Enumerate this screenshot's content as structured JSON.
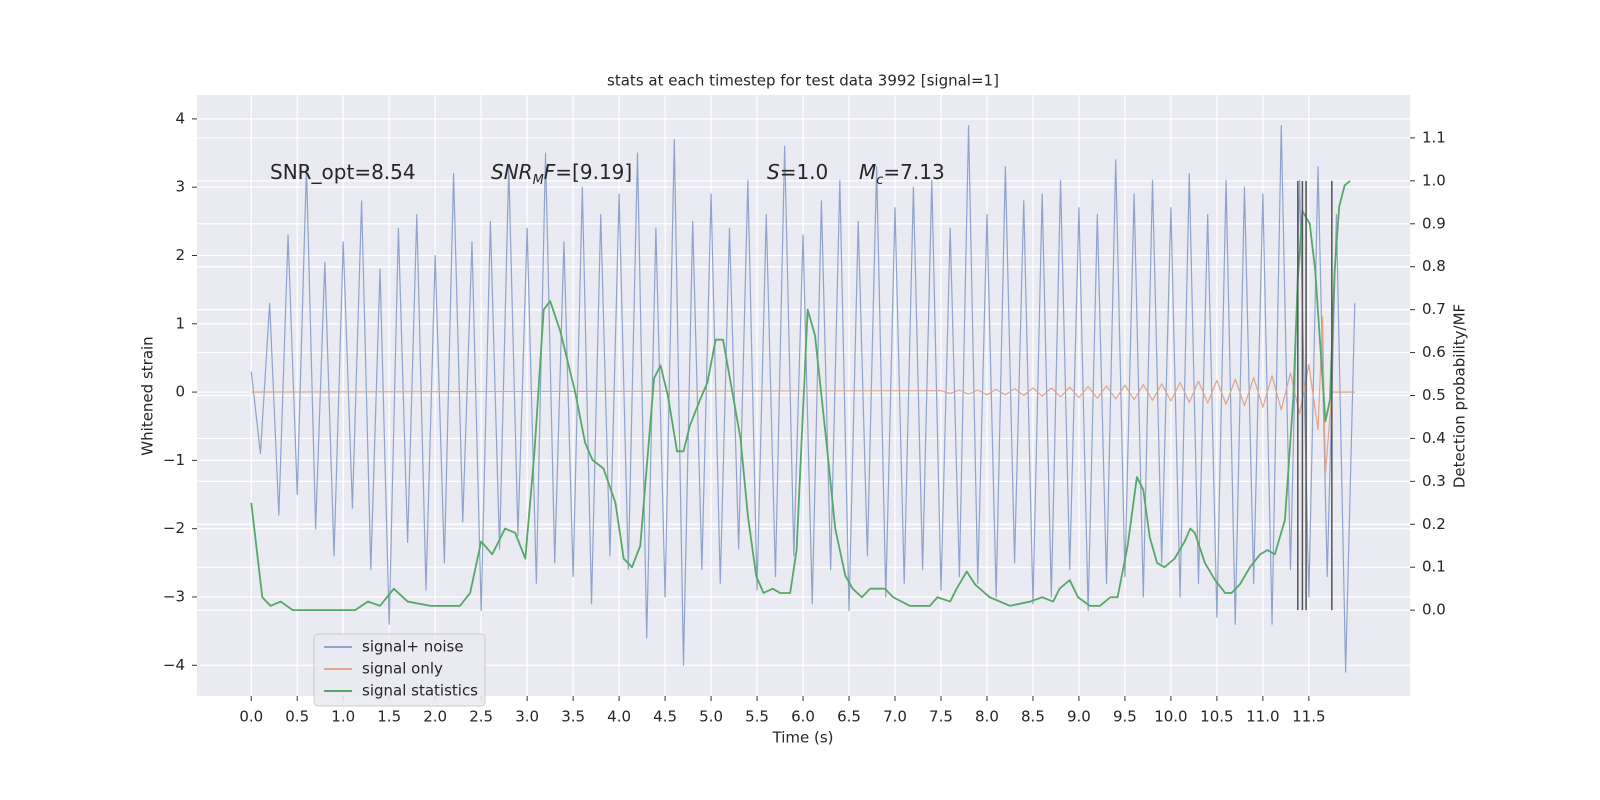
{
  "chart_data": {
    "type": "line",
    "title": "stats at each timestep for test data 3992 [signal=1]",
    "xlabel": "Time (s)",
    "ylabel": "Whitened strain",
    "y2label": "Detection probability/MF",
    "xlim": [
      -0.59,
      12.6
    ],
    "ylim": [
      -4.45,
      4.35
    ],
    "y2lim": [
      -0.2,
      1.2
    ],
    "xticks": [
      {
        "value": 0,
        "label": "0.0"
      },
      {
        "value": 0.5,
        "label": "0.5"
      },
      {
        "value": 1,
        "label": "1.0"
      },
      {
        "value": 1.5,
        "label": "1.5"
      },
      {
        "value": 2,
        "label": "2.0"
      },
      {
        "value": 2.5,
        "label": "2.5"
      },
      {
        "value": 3,
        "label": "3.0"
      },
      {
        "value": 3.5,
        "label": "3.5"
      },
      {
        "value": 4,
        "label": "4.0"
      },
      {
        "value": 4.5,
        "label": "4.5"
      },
      {
        "value": 5,
        "label": "5.0"
      },
      {
        "value": 5.5,
        "label": "5.5"
      },
      {
        "value": 6,
        "label": "6.0"
      },
      {
        "value": 6.5,
        "label": "6.5"
      },
      {
        "value": 7,
        "label": "7.0"
      },
      {
        "value": 7.5,
        "label": "7.5"
      },
      {
        "value": 8,
        "label": "8.0"
      },
      {
        "value": 8.5,
        "label": "8.5"
      },
      {
        "value": 9,
        "label": "9.0"
      },
      {
        "value": 9.5,
        "label": "9.5"
      },
      {
        "value": 10,
        "label": "10.0"
      },
      {
        "value": 10.5,
        "label": "10.5"
      },
      {
        "value": 11,
        "label": "11.0"
      },
      {
        "value": 11.5,
        "label": "11.5"
      }
    ],
    "yticks": [
      {
        "value": -4,
        "label": "−4"
      },
      {
        "value": -3,
        "label": "−3"
      },
      {
        "value": -2,
        "label": "−2"
      },
      {
        "value": -1,
        "label": "−1"
      },
      0,
      1,
      2,
      3,
      4
    ],
    "y2ticks": [
      {
        "value": 0,
        "label": "0.0"
      },
      {
        "value": 0.1,
        "label": "0.1"
      },
      {
        "value": 0.2,
        "label": "0.2"
      },
      {
        "value": 0.3,
        "label": "0.3"
      },
      {
        "value": 0.4,
        "label": "0.4"
      },
      {
        "value": 0.5,
        "label": "0.5"
      },
      {
        "value": 0.6,
        "label": "0.6"
      },
      {
        "value": 0.7,
        "label": "0.7"
      },
      {
        "value": 0.8,
        "label": "0.8"
      },
      {
        "value": 0.9,
        "label": "0.9"
      },
      {
        "value": 1,
        "label": "1.0"
      },
      {
        "value": 1.1,
        "label": "1.1"
      }
    ],
    "grid": true,
    "legend_loc": "lower left",
    "series": [
      {
        "name": "signal+ noise",
        "color": "#8fa3cc",
        "axis": "y",
        "x": [
          0,
          0.1,
          0.2,
          0.3,
          0.4,
          0.5,
          0.6,
          0.7,
          0.8,
          0.9,
          1,
          1.1,
          1.2,
          1.3,
          1.4,
          1.5,
          1.6,
          1.7,
          1.8,
          1.9,
          2,
          2.1,
          2.2,
          2.3,
          2.4,
          2.5,
          2.6,
          2.7,
          2.8,
          2.9,
          3,
          3.1,
          3.2,
          3.3,
          3.4,
          3.5,
          3.6,
          3.7,
          3.8,
          3.9,
          4,
          4.1,
          4.2,
          4.3,
          4.4,
          4.5,
          4.6,
          4.7,
          4.8,
          4.9,
          5,
          5.1,
          5.2,
          5.3,
          5.4,
          5.5,
          5.6,
          5.7,
          5.8,
          5.9,
          6,
          6.1,
          6.2,
          6.3,
          6.4,
          6.5,
          6.6,
          6.7,
          6.8,
          6.9,
          7,
          7.1,
          7.2,
          7.3,
          7.4,
          7.5,
          7.6,
          7.7,
          7.8,
          7.9,
          8,
          8.1,
          8.2,
          8.3,
          8.4,
          8.5,
          8.6,
          8.7,
          8.8,
          8.9,
          9,
          9.1,
          9.2,
          9.3,
          9.4,
          9.5,
          9.6,
          9.7,
          9.8,
          9.9,
          10,
          10.1,
          10.2,
          10.3,
          10.4,
          10.5,
          10.6,
          10.7,
          10.8,
          10.9,
          11,
          11.1,
          11.2,
          11.3,
          11.4,
          11.5,
          11.6,
          11.7,
          11.8,
          11.9,
          12
        ],
        "values": [
          0.3,
          -0.9,
          1.3,
          -1.8,
          2.3,
          -1.5,
          3.3,
          -2.0,
          1.9,
          -2.4,
          2.2,
          -1.7,
          2.8,
          -2.6,
          1.8,
          -3.4,
          2.4,
          -2.2,
          2.6,
          -2.9,
          2.0,
          -2.5,
          3.2,
          -1.9,
          2.2,
          -3.2,
          2.5,
          -2.3,
          3.3,
          -2.1,
          2.4,
          -2.8,
          3.5,
          -2.5,
          2.2,
          -2.7,
          3.0,
          -3.1,
          2.6,
          -2.4,
          2.9,
          -2.6,
          3.5,
          -3.6,
          2.4,
          -3.0,
          3.7,
          -4.0,
          2.5,
          -2.6,
          2.9,
          -2.8,
          2.4,
          -2.3,
          3.1,
          -2.9,
          2.6,
          -2.7,
          3.6,
          -2.4,
          2.3,
          -3.1,
          2.8,
          -2.6,
          3.1,
          -3.2,
          2.5,
          -2.4,
          3.3,
          -3.0,
          2.7,
          -2.8,
          3.0,
          -2.6,
          3.1,
          -2.9,
          2.4,
          -2.7,
          3.9,
          -2.8,
          2.6,
          -3.0,
          3.3,
          -2.5,
          2.8,
          -3.1,
          2.9,
          -3.0,
          3.1,
          -2.6,
          2.7,
          -3.2,
          2.6,
          -2.8,
          3.4,
          -2.7,
          2.9,
          -3.0,
          3.1,
          -2.5,
          2.7,
          -3.0,
          3.2,
          -2.8,
          2.6,
          -3.3,
          3.1,
          -3.4,
          3.0,
          -2.8,
          2.9,
          -3.4,
          3.9,
          -2.6,
          3.1,
          -3.0,
          3.3,
          -2.7,
          2.6,
          -4.1,
          1.3
        ]
      },
      {
        "name": "signal only",
        "color": "#e0a58a",
        "axis": "y",
        "x": [
          0,
          7.5,
          7.6,
          7.7,
          7.8,
          7.9,
          8,
          8.1,
          8.2,
          8.3,
          8.4,
          8.5,
          8.6,
          8.7,
          8.8,
          8.9,
          9,
          9.1,
          9.2,
          9.3,
          9.4,
          9.5,
          9.6,
          9.7,
          9.8,
          9.9,
          10,
          10.1,
          10.2,
          10.3,
          10.4,
          10.5,
          10.6,
          10.7,
          10.8,
          10.9,
          11,
          11.1,
          11.2,
          11.3,
          11.4,
          11.5,
          11.6,
          11.65,
          11.68,
          11.75,
          12
        ],
        "values": [
          0,
          0.02,
          -0.02,
          0.03,
          -0.03,
          0.03,
          -0.04,
          0.04,
          -0.04,
          0.05,
          -0.05,
          0.06,
          -0.06,
          0.06,
          -0.07,
          0.07,
          -0.08,
          0.08,
          -0.09,
          0.09,
          -0.1,
          0.1,
          -0.11,
          0.11,
          -0.12,
          0.12,
          -0.13,
          0.14,
          -0.15,
          0.16,
          -0.16,
          0.17,
          -0.18,
          0.19,
          -0.2,
          0.21,
          -0.22,
          0.24,
          -0.26,
          0.28,
          -0.32,
          0.4,
          -0.55,
          1.1,
          -1.2,
          0,
          0
        ]
      },
      {
        "name": "signal statistics",
        "color": "#55a868",
        "axis": "y2",
        "x": [
          0,
          0.12,
          0.21,
          0.32,
          0.45,
          0.75,
          0.97,
          1.13,
          1.27,
          1.4,
          1.55,
          1.7,
          1.95,
          2.27,
          2.38,
          2.5,
          2.62,
          2.76,
          2.87,
          2.98,
          3.08,
          3.18,
          3.25,
          3.36,
          3.52,
          3.63,
          3.71,
          3.83,
          3.96,
          4.05,
          4.14,
          4.23,
          4.38,
          4.45,
          4.53,
          4.63,
          4.7,
          4.77,
          4.88,
          4.96,
          5.05,
          5.13,
          5.18,
          5.32,
          5.4,
          5.49,
          5.57,
          5.67,
          5.75,
          5.86,
          5.93,
          6.05,
          6.13,
          6.26,
          6.35,
          6.46,
          6.54,
          6.64,
          6.73,
          6.82,
          6.89,
          6.98,
          7.16,
          7.38,
          7.46,
          7.6,
          7.67,
          7.78,
          7.87,
          8.03,
          8.25,
          8.47,
          8.6,
          8.72,
          8.79,
          8.9,
          8.99,
          9.12,
          9.23,
          9.34,
          9.42,
          9.53,
          9.63,
          9.7,
          9.77,
          9.85,
          9.93,
          10.04,
          10.15,
          10.21,
          10.26,
          10.37,
          10.48,
          10.59,
          10.66,
          10.75,
          10.86,
          10.97,
          11.05,
          11.13,
          11.24,
          11.33,
          11.38,
          11.43,
          11.51,
          11.57,
          11.62,
          11.68,
          11.73,
          11.78,
          11.83,
          11.89,
          11.95
        ],
        "values": [
          0.25,
          0.03,
          0.01,
          0.02,
          0,
          0,
          0,
          0,
          0.02,
          0.01,
          0.05,
          0.02,
          0.01,
          0.01,
          0.04,
          0.16,
          0.13,
          0.19,
          0.18,
          0.12,
          0.37,
          0.7,
          0.72,
          0.65,
          0.51,
          0.39,
          0.35,
          0.33,
          0.25,
          0.12,
          0.1,
          0.15,
          0.54,
          0.57,
          0.5,
          0.37,
          0.37,
          0.43,
          0.49,
          0.53,
          0.63,
          0.63,
          0.57,
          0.4,
          0.22,
          0.08,
          0.04,
          0.05,
          0.04,
          0.04,
          0.14,
          0.7,
          0.64,
          0.38,
          0.19,
          0.08,
          0.05,
          0.03,
          0.05,
          0.05,
          0.05,
          0.03,
          0.01,
          0.01,
          0.03,
          0.02,
          0.05,
          0.09,
          0.06,
          0.03,
          0.01,
          0.02,
          0.03,
          0.02,
          0.05,
          0.07,
          0.03,
          0.01,
          0.01,
          0.03,
          0.03,
          0.15,
          0.31,
          0.28,
          0.17,
          0.11,
          0.1,
          0.12,
          0.16,
          0.19,
          0.18,
          0.11,
          0.07,
          0.04,
          0.04,
          0.06,
          0.1,
          0.13,
          0.14,
          0.13,
          0.21,
          0.49,
          0.77,
          0.93,
          0.9,
          0.79,
          0.63,
          0.44,
          0.49,
          0.79,
          0.94,
          0.99,
          1.0
        ]
      }
    ],
    "vlines": {
      "x": [
        11.38,
        11.43,
        11.47,
        11.75
      ],
      "ymin": 0,
      "ymax": 1,
      "axis": "y2",
      "color": "#555555"
    },
    "annotations": [
      [
        {
          "text": "SNR_opt=8.54",
          "style": "normal"
        }
      ],
      [
        {
          "text": "SNR",
          "style": "italic"
        },
        {
          "text": "M",
          "style": "sub"
        },
        {
          "text": "F",
          "style": "italic"
        },
        {
          "text": "=[9.19]",
          "style": "normal"
        }
      ],
      [
        {
          "text": "S",
          "style": "italic"
        },
        {
          "text": "=1.0",
          "style": "normal"
        }
      ],
      [
        {
          "text": "M",
          "style": "italic"
        },
        {
          "text": "c",
          "style": "sub"
        },
        {
          "text": "=7.13",
          "style": "normal"
        }
      ]
    ]
  }
}
